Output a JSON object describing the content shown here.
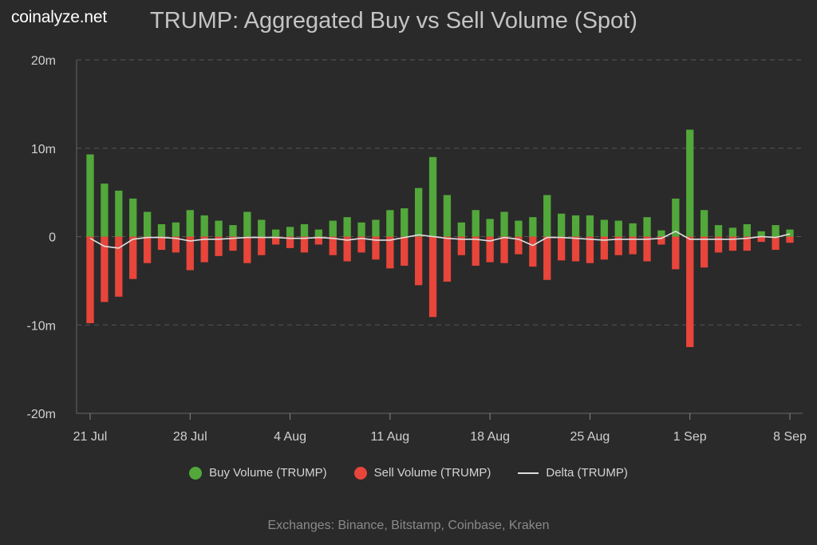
{
  "brand": "coinalyze.net",
  "footer": "Exchanges: Binance, Bitstamp, Coinbase, Kraken",
  "colors": {
    "background": "#2a2a2a",
    "buy": "#52a83a",
    "sell": "#e8453b",
    "delta": "#e0e0e0",
    "grid": "#555555"
  },
  "chart_data": {
    "type": "bar",
    "title": "TRUMP: Aggregated Buy vs Sell Volume (Spot)",
    "yticks": [
      "20m",
      "10m",
      "0",
      "-10m",
      "-20m"
    ],
    "ylim": [
      -20,
      20
    ],
    "xticks": [
      "21 Jul",
      "28 Jul",
      "4 Aug",
      "11 Aug",
      "18 Aug",
      "25 Aug",
      "1 Sep",
      "8 Sep"
    ],
    "grid": true,
    "legend_position": "bottom",
    "dates": [
      "2025-07-21",
      "2025-07-22",
      "2025-07-23",
      "2025-07-24",
      "2025-07-25",
      "2025-07-26",
      "2025-07-27",
      "2025-07-28",
      "2025-07-29",
      "2025-07-30",
      "2025-07-31",
      "2025-08-01",
      "2025-08-02",
      "2025-08-03",
      "2025-08-04",
      "2025-08-05",
      "2025-08-06",
      "2025-08-07",
      "2025-08-08",
      "2025-08-09",
      "2025-08-10",
      "2025-08-11",
      "2025-08-12",
      "2025-08-13",
      "2025-08-14",
      "2025-08-15",
      "2025-08-16",
      "2025-08-17",
      "2025-08-18",
      "2025-08-19",
      "2025-08-20",
      "2025-08-21",
      "2025-08-22",
      "2025-08-23",
      "2025-08-24",
      "2025-08-25",
      "2025-08-26",
      "2025-08-27",
      "2025-08-28",
      "2025-08-29",
      "2025-08-30",
      "2025-08-31",
      "2025-09-01",
      "2025-09-02",
      "2025-09-03",
      "2025-09-04",
      "2025-09-05",
      "2025-09-06",
      "2025-09-07",
      "2025-09-08"
    ],
    "series": [
      {
        "name": "Buy Volume (TRUMP)",
        "values": [
          9.3,
          6.0,
          5.2,
          4.3,
          2.8,
          1.4,
          1.6,
          3.0,
          2.4,
          1.8,
          1.3,
          2.8,
          1.9,
          0.8,
          1.1,
          1.4,
          0.8,
          1.8,
          2.2,
          1.6,
          1.9,
          3.0,
          3.2,
          5.5,
          9.0,
          4.7,
          1.6,
          3.0,
          2.0,
          2.8,
          1.8,
          2.2,
          4.7,
          2.6,
          2.4,
          2.4,
          1.9,
          1.8,
          1.5,
          2.2,
          0.7,
          4.3,
          12.1,
          3.0,
          1.3,
          1.0,
          1.4,
          0.6,
          1.3,
          0.8
        ],
        "color": "#52a83a"
      },
      {
        "name": "Sell Volume (TRUMP)",
        "values": [
          -9.8,
          -7.4,
          -6.8,
          -4.8,
          -3.0,
          -1.5,
          -1.8,
          -3.8,
          -2.9,
          -2.2,
          -1.6,
          -3.0,
          -2.1,
          -0.9,
          -1.3,
          -1.8,
          -0.9,
          -2.1,
          -2.8,
          -1.8,
          -2.6,
          -3.6,
          -3.3,
          -5.5,
          -9.1,
          -5.1,
          -2.1,
          -3.3,
          -2.9,
          -3.0,
          -2.0,
          -3.4,
          -4.9,
          -2.7,
          -2.8,
          -3.0,
          -2.6,
          -2.1,
          -2.0,
          -2.8,
          -0.9,
          -3.7,
          -12.5,
          -3.5,
          -1.8,
          -1.6,
          -1.6,
          -0.6,
          -1.5,
          -0.7
        ]
      },
      {
        "name": "Delta (TRUMP)",
        "values": [
          -0.2,
          -1.1,
          -1.3,
          -0.3,
          -0.1,
          -0.1,
          -0.2,
          -0.5,
          -0.3,
          -0.3,
          -0.2,
          -0.1,
          -0.1,
          -0.1,
          -0.2,
          -0.2,
          -0.1,
          -0.2,
          -0.4,
          -0.2,
          -0.4,
          -0.4,
          -0.1,
          0.2,
          0.0,
          -0.2,
          -0.3,
          -0.3,
          -0.5,
          -0.1,
          -0.3,
          -1.0,
          -0.1,
          -0.1,
          -0.2,
          -0.3,
          -0.4,
          -0.3,
          -0.3,
          -0.3,
          -0.2,
          0.6,
          -0.3,
          -0.3,
          -0.3,
          -0.3,
          -0.2,
          0.0,
          -0.1,
          0.3
        ]
      }
    ]
  }
}
